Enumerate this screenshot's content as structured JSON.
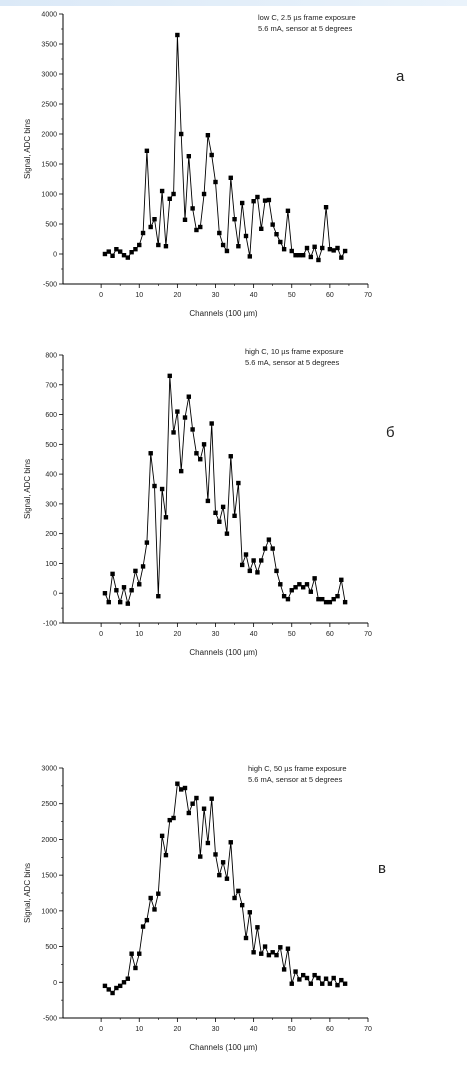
{
  "chart_data": [
    {
      "type": "line",
      "panel_label": "а",
      "annotation": [
        "low C, 2.5 µs frame exposure",
        "5.6 mA, sensor at 5 degrees"
      ],
      "xlabel": "Channels (100 µm)",
      "ylabel": "Signal, ADC bins",
      "xlim": [
        -10,
        70
      ],
      "ylim": [
        -500,
        4000
      ],
      "xticks": [
        0,
        10,
        20,
        30,
        40,
        50,
        60,
        70
      ],
      "yticks": [
        -500,
        0,
        500,
        1000,
        1500,
        2000,
        2500,
        3000,
        3500,
        4000
      ],
      "grid": false,
      "marker": "square",
      "x": [
        1,
        2,
        3,
        4,
        5,
        6,
        7,
        8,
        9,
        10,
        11,
        12,
        13,
        14,
        15,
        16,
        17,
        18,
        19,
        20,
        21,
        22,
        23,
        24,
        25,
        26,
        27,
        28,
        29,
        30,
        31,
        32,
        33,
        34,
        35,
        36,
        37,
        38,
        39,
        40,
        41,
        42,
        43,
        44,
        45,
        46,
        47,
        48,
        49,
        50,
        51,
        52,
        53,
        54,
        55,
        56,
        57,
        58,
        59,
        60,
        61,
        62,
        63,
        64
      ],
      "y": [
        0,
        40,
        -30,
        80,
        40,
        -20,
        -60,
        30,
        80,
        150,
        350,
        1720,
        450,
        580,
        150,
        1050,
        130,
        920,
        1000,
        3650,
        2000,
        570,
        1630,
        760,
        400,
        450,
        1000,
        1980,
        1650,
        1200,
        350,
        150,
        50,
        1270,
        580,
        130,
        850,
        300,
        -40,
        880,
        950,
        420,
        890,
        900,
        490,
        330,
        200,
        80,
        720,
        50,
        -20,
        -20,
        -20,
        100,
        -50,
        120,
        -100,
        100,
        780,
        80,
        60,
        100,
        -60,
        50
      ]
    },
    {
      "type": "line",
      "panel_label": "б",
      "annotation": [
        "high C, 10 µs frame exposure",
        "5.6 mA, sensor at 5 degrees"
      ],
      "xlabel": "Channels (100 µm)",
      "ylabel": "Signal, ADC bins",
      "xlim": [
        -10,
        70
      ],
      "ylim": [
        -100,
        800
      ],
      "xticks": [
        0,
        10,
        20,
        30,
        40,
        50,
        60,
        70
      ],
      "yticks": [
        -100,
        0,
        100,
        200,
        300,
        400,
        500,
        600,
        700,
        800
      ],
      "grid": false,
      "marker": "square",
      "x": [
        1,
        2,
        3,
        4,
        5,
        6,
        7,
        8,
        9,
        10,
        11,
        12,
        13,
        14,
        15,
        16,
        17,
        18,
        19,
        20,
        21,
        22,
        23,
        24,
        25,
        26,
        27,
        28,
        29,
        30,
        31,
        32,
        33,
        34,
        35,
        36,
        37,
        38,
        39,
        40,
        41,
        42,
        43,
        44,
        45,
        46,
        47,
        48,
        49,
        50,
        51,
        52,
        53,
        54,
        55,
        56,
        57,
        58,
        59,
        60,
        61,
        62,
        63,
        64
      ],
      "y": [
        0,
        -30,
        65,
        10,
        -30,
        20,
        -35,
        10,
        75,
        30,
        90,
        170,
        470,
        360,
        -10,
        350,
        255,
        730,
        540,
        610,
        410,
        590,
        660,
        550,
        470,
        450,
        500,
        310,
        570,
        270,
        240,
        290,
        200,
        460,
        260,
        370,
        95,
        130,
        75,
        110,
        70,
        110,
        150,
        180,
        150,
        75,
        30,
        -10,
        -20,
        10,
        20,
        30,
        20,
        30,
        5,
        50,
        -20,
        -20,
        -30,
        -30,
        -20,
        -10,
        45,
        -30
      ]
    },
    {
      "type": "line",
      "panel_label": "в",
      "annotation": [
        "high C, 50 µs frame exposure",
        "5.6 mA, sensor at 5 degrees"
      ],
      "xlabel": "Channels (100 µm)",
      "ylabel": "Signal, ADC bins",
      "xlim": [
        -10,
        70
      ],
      "ylim": [
        -500,
        3000
      ],
      "xticks": [
        0,
        10,
        20,
        30,
        40,
        50,
        60,
        70
      ],
      "yticks": [
        -500,
        0,
        500,
        1000,
        1500,
        2000,
        2500,
        3000
      ],
      "grid": false,
      "marker": "square",
      "x": [
        1,
        2,
        3,
        4,
        5,
        6,
        7,
        8,
        9,
        10,
        11,
        12,
        13,
        14,
        15,
        16,
        17,
        18,
        19,
        20,
        21,
        22,
        23,
        24,
        25,
        26,
        27,
        28,
        29,
        30,
        31,
        32,
        33,
        34,
        35,
        36,
        37,
        38,
        39,
        40,
        41,
        42,
        43,
        44,
        45,
        46,
        47,
        48,
        49,
        50,
        51,
        52,
        53,
        54,
        55,
        56,
        57,
        58,
        59,
        60,
        61,
        62,
        63,
        64
      ],
      "y": [
        -50,
        -100,
        -150,
        -80,
        -50,
        0,
        50,
        400,
        200,
        400,
        780,
        870,
        1180,
        1020,
        1240,
        2050,
        1780,
        2270,
        2300,
        2780,
        2700,
        2720,
        2370,
        2500,
        2580,
        1760,
        2430,
        1950,
        2570,
        1790,
        1500,
        1680,
        1450,
        1960,
        1180,
        1280,
        1080,
        620,
        980,
        420,
        770,
        400,
        500,
        380,
        420,
        380,
        490,
        180,
        470,
        -20,
        150,
        40,
        100,
        60,
        -20,
        100,
        60,
        -20,
        50,
        -20,
        60,
        -40,
        30,
        -20
      ]
    }
  ]
}
